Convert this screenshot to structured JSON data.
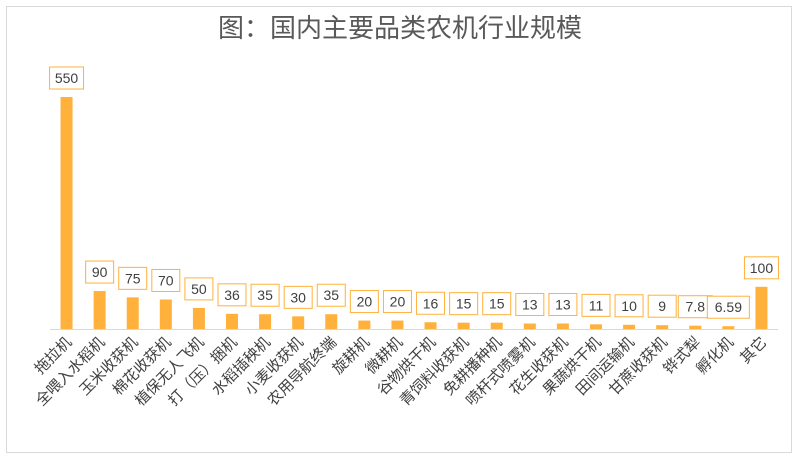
{
  "chart_data": {
    "type": "bar",
    "title": "图：国内主要品类农机行业规模",
    "categories": [
      "拖拉机",
      "全喂入水稻机",
      "玉米收获机",
      "棉花收获机",
      "植保无人飞机",
      "打（压）捆机",
      "水稻插秧机",
      "小麦收获机",
      "农用导航终端",
      "旋耕机",
      "微耕机",
      "谷物烘干机",
      "青饲料收获机",
      "免耕播种机",
      "喷杆式喷雾机",
      "花生收获机",
      "果蔬烘干机",
      "田间运输机",
      "甘蔗收获机",
      "铧式犁",
      "孵化机",
      "其它"
    ],
    "values": [
      550,
      90,
      75,
      70,
      50,
      36,
      35,
      30,
      35,
      20,
      20,
      16,
      15,
      15,
      13,
      13,
      11,
      10,
      9,
      7.8,
      6.59,
      100
    ],
    "value_labels": [
      "550",
      "90",
      "75",
      "70",
      "50",
      "36",
      "35",
      "30",
      "35",
      "20",
      "20",
      "16",
      "15",
      "15",
      "13",
      "13",
      "11",
      "10",
      "9",
      "7.8",
      "6.59",
      "100"
    ],
    "ylim": [
      0,
      600
    ],
    "grid": false,
    "legend": "none",
    "bar_color": "#FFB13B",
    "label_box_color": "#FFB13B",
    "baseline_color": "#d9d9d9"
  }
}
